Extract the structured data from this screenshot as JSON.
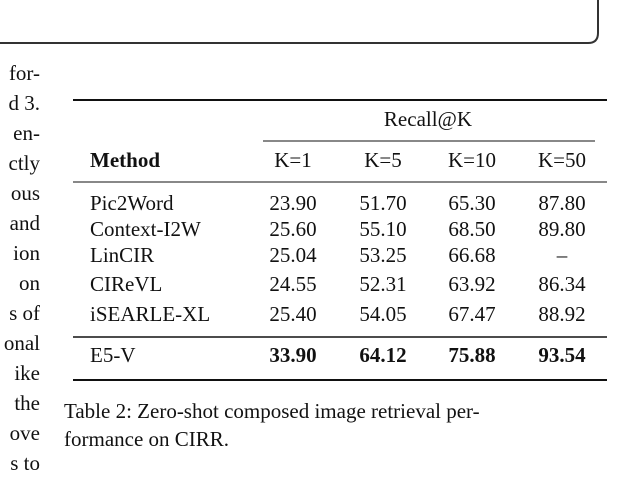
{
  "left_column_fragments": [
    "for-",
    "d 3.",
    "en-",
    "ctly",
    "ous",
    "and",
    "ion",
    "on",
    "s of",
    "onal",
    "ike",
    "the",
    "ove",
    "s to"
  ],
  "table": {
    "group_header": "Recall@K",
    "columns": [
      "Method",
      "K=1",
      "K=5",
      "K=10",
      "K=50"
    ],
    "rows": [
      [
        "Pic2Word",
        "23.90",
        "51.70",
        "65.30",
        "87.80"
      ],
      [
        "Context-I2W",
        "25.60",
        "55.10",
        "68.50",
        "89.80"
      ],
      [
        "LinCIR",
        "25.04",
        "53.25",
        "66.68",
        "–"
      ],
      [
        "CIReVL",
        "24.55",
        "52.31",
        "63.92",
        "86.34"
      ],
      [
        "iSEARLE-XL",
        "25.40",
        "54.05",
        "67.47",
        "88.92"
      ]
    ],
    "highlight_row": [
      "E5-V",
      "33.90",
      "64.12",
      "75.88",
      "93.54"
    ]
  },
  "caption": [
    "Table 2: Zero-shot composed image retrieval per-",
    "formance on CIRR."
  ]
}
